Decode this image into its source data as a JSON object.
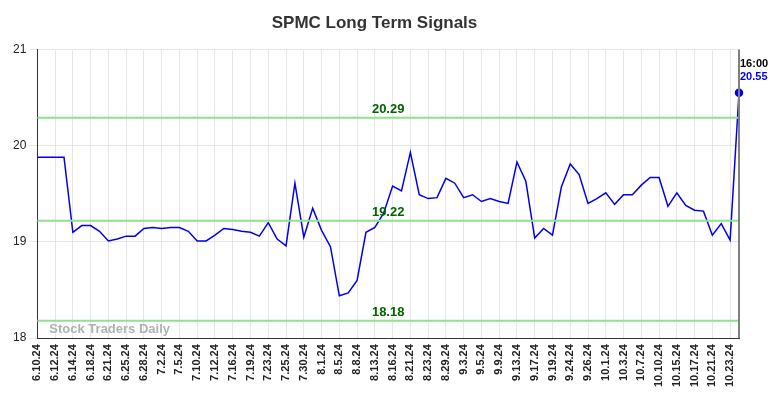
{
  "chart_data": {
    "type": "line",
    "title": "SPMC Long Term Signals",
    "categories": [
      "6.10.24",
      null,
      "6.12.24",
      null,
      "6.14.24",
      null,
      "6.18.24",
      null,
      "6.21.24",
      null,
      "6.25.24",
      null,
      "6.28.24",
      null,
      "7.2.24",
      null,
      "7.5.24",
      null,
      "7.10.24",
      null,
      "7.12.24",
      null,
      "7.16.24",
      null,
      "7.19.24",
      null,
      "7.23.24",
      null,
      "7.25.24",
      null,
      "7.30.24",
      null,
      "8.1.24",
      null,
      "8.5.24",
      null,
      "8.8.24",
      null,
      "8.13.24",
      null,
      "8.16.24",
      null,
      "8.21.24",
      null,
      "8.23.24",
      null,
      "8.29.24",
      null,
      "9.3.24",
      null,
      "9.5.24",
      null,
      "9.9.24",
      null,
      "9.13.24",
      null,
      "9.17.24",
      null,
      "9.19.24",
      null,
      "9.24.24",
      null,
      "9.26.24",
      null,
      "10.1.24",
      null,
      "10.3.24",
      null,
      "10.7.24",
      null,
      "10.10.24",
      null,
      "10.15.24",
      null,
      "10.17.24",
      null,
      "10.21.24",
      null,
      "10.23.24",
      null
    ],
    "values": [
      19.88,
      19.88,
      19.88,
      19.88,
      19.1,
      19.17,
      19.17,
      19.11,
      19.01,
      19.03,
      19.06,
      19.06,
      19.14,
      19.15,
      19.14,
      19.15,
      19.15,
      19.11,
      19.01,
      19.01,
      19.07,
      19.14,
      19.13,
      19.11,
      19.1,
      19.06,
      19.2,
      19.03,
      18.96,
      19.61,
      19.05,
      19.35,
      19.12,
      18.95,
      18.44,
      18.47,
      18.6,
      19.1,
      19.15,
      19.3,
      19.58,
      19.53,
      19.93,
      19.49,
      19.45,
      19.46,
      19.66,
      19.61,
      19.46,
      19.49,
      19.42,
      19.45,
      19.42,
      19.4,
      19.83,
      19.63,
      19.04,
      19.14,
      19.07,
      19.57,
      19.81,
      19.7,
      19.4,
      19.45,
      19.51,
      19.39,
      19.49,
      19.49,
      19.59,
      19.67,
      19.67,
      19.37,
      19.51,
      19.38,
      19.33,
      19.32,
      19.07,
      19.19,
      19.02,
      20.55
    ],
    "color": "#0000ee",
    "levels": [
      20.29,
      19.22,
      18.18
    ],
    "last_point_label": "16:00",
    "watermark": "Stock Traders Daily",
    "ylim": [
      18,
      21
    ],
    "yticks": [
      18,
      19,
      20,
      21
    ],
    "grid": true
  }
}
